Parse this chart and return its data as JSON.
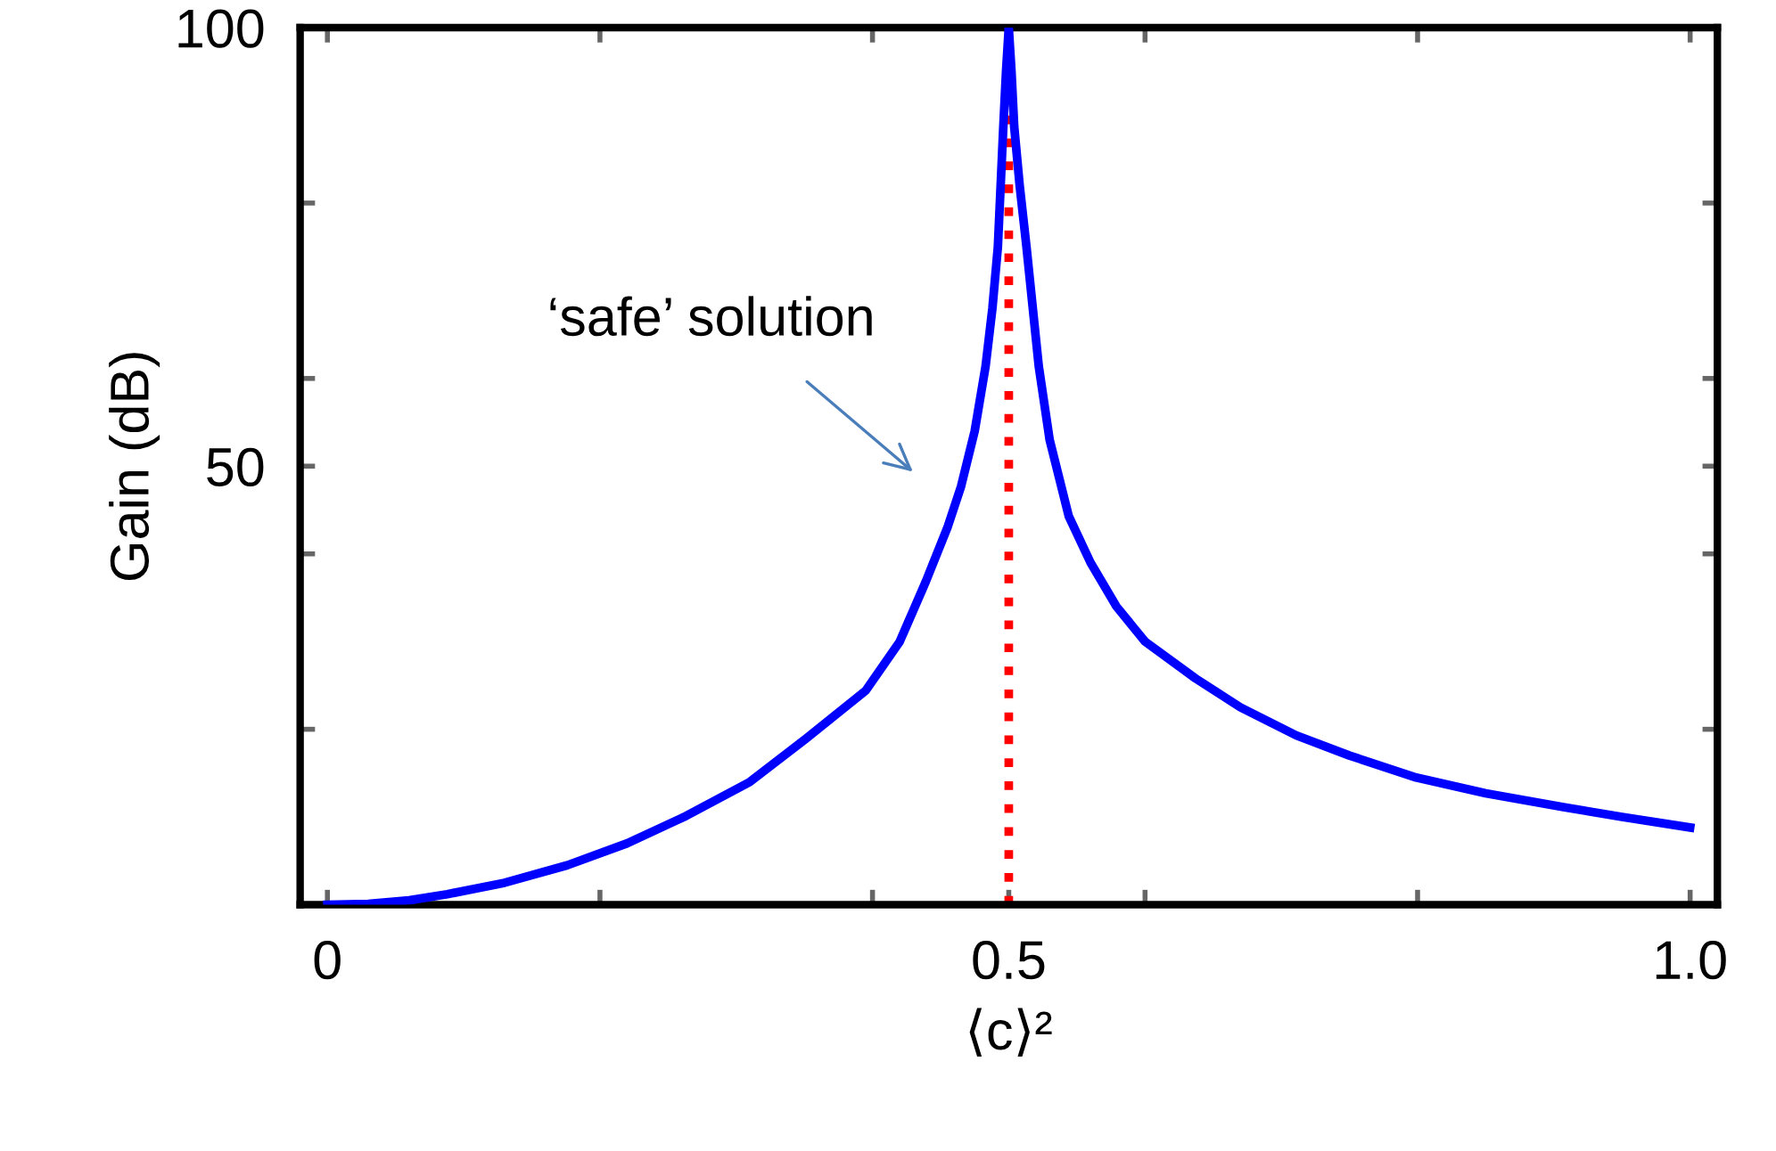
{
  "chart_data": {
    "type": "line",
    "xlabel": "⟨c⟩²",
    "ylabel": "Gain (dB)",
    "xlim": [
      -0.02,
      1.02
    ],
    "ylim": [
      0,
      100
    ],
    "xticks": [
      0,
      {
        "value": 0.2,
        "label": null
      },
      {
        "value": 0.4,
        "label": null
      },
      0.5,
      {
        "value": 0.6,
        "label": null
      },
      {
        "value": 0.8,
        "label": null
      },
      {
        "value": 1.0,
        "label": "1.0"
      }
    ],
    "yticks": [
      {
        "value": 20,
        "label": null
      },
      {
        "value": 40,
        "label": null
      },
      50,
      {
        "value": 60,
        "label": null
      },
      {
        "value": 80,
        "label": null
      },
      100
    ],
    "x": [
      0,
      0.03,
      0.06,
      0.088,
      0.13,
      0.176,
      0.22,
      0.263,
      0.31,
      0.351,
      0.395,
      0.42,
      0.439,
      0.455,
      0.465,
      0.475,
      0.483,
      0.488,
      0.492,
      0.496,
      0.498,
      0.5,
      0.502,
      0.504,
      0.508,
      0.513,
      0.522,
      0.53,
      0.544,
      0.56,
      0.579,
      0.6,
      0.637,
      0.67,
      0.711,
      0.75,
      0.799,
      0.85,
      0.908,
      0.95,
      1.0
    ],
    "series": [
      {
        "color": "#0000ff",
        "values": [
          0,
          0.1,
          0.5,
          1.2,
          2.5,
          4.5,
          7,
          10.1,
          14,
          18.9,
          24.4,
          30,
          36.8,
          43,
          47.7,
          54,
          61.4,
          68,
          75,
          88.7,
          95,
          100,
          95,
          88.7,
          82,
          75,
          61.4,
          53,
          44.3,
          39,
          34,
          30,
          25.8,
          22.5,
          19.3,
          17,
          14.5,
          12.7,
          11.1,
          10,
          8.8
        ]
      }
    ],
    "ref_lines": [
      {
        "axis": "x",
        "value": 0.5,
        "color": "#ff0000",
        "line_style": "dotted"
      }
    ],
    "annotations": [
      "‘safe’ solution"
    ],
    "grid": false,
    "legend": false,
    "marker": "none",
    "line_style": "solid"
  }
}
